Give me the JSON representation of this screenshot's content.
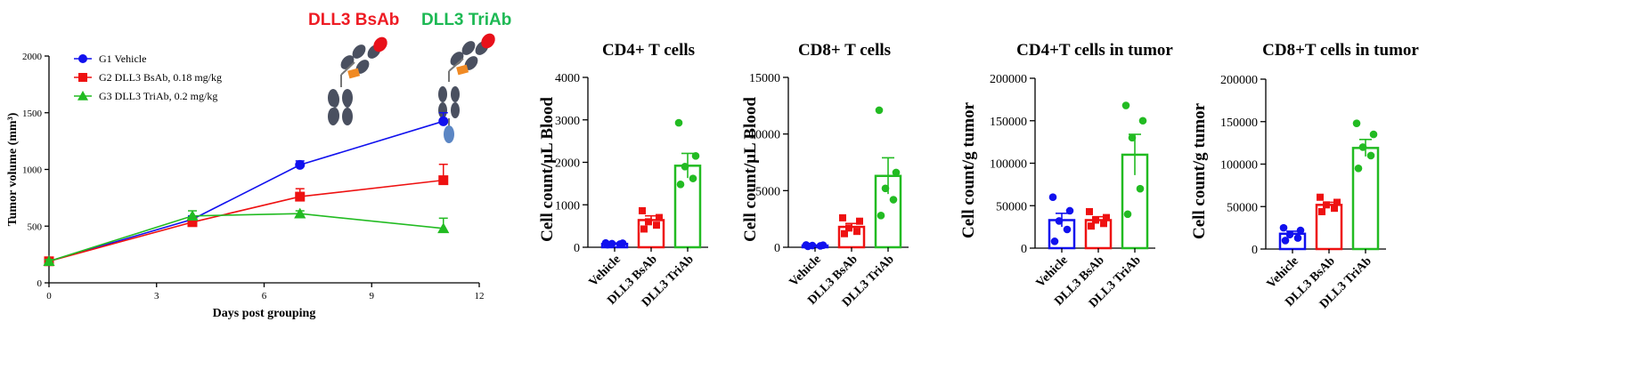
{
  "banner": {
    "bsab": {
      "text": "DLL3 BsAb",
      "color": "#ee1c24"
    },
    "triab": {
      "text": "DLL3 TriAb",
      "color": "#1db954"
    }
  },
  "colors": {
    "vehicle": "#1111ee",
    "bsab": "#ee1111",
    "triab": "#22bb22"
  },
  "chart_data": [
    {
      "type": "line",
      "title": "",
      "xlabel": "Days post grouping",
      "ylabel": "Tumor volume (mm³)",
      "xlim": [
        0,
        12
      ],
      "ylim": [
        0,
        2000
      ],
      "xticks": [
        0,
        3,
        6,
        9,
        12
      ],
      "yticks": [
        0,
        500,
        1000,
        1500,
        2000
      ],
      "legend_position": "top-left",
      "series": [
        {
          "name": "G1 Vehicle",
          "key": "vehicle",
          "marker": "circle",
          "x": [
            0,
            4,
            7,
            11
          ],
          "y": [
            190,
            560,
            1040,
            1425
          ],
          "err": [
            15,
            30,
            35,
            75
          ]
        },
        {
          "name": "G2 DLL3 BsAb, 0.18 mg/kg",
          "key": "bsab",
          "marker": "square",
          "x": [
            0,
            4,
            7,
            11
          ],
          "y": [
            190,
            535,
            760,
            905
          ],
          "err": [
            15,
            30,
            70,
            140
          ]
        },
        {
          "name": "G3 DLL3 TriAb, 0.2 mg/kg",
          "key": "triab",
          "marker": "triangle",
          "x": [
            0,
            4,
            7,
            11
          ],
          "y": [
            190,
            590,
            610,
            480
          ],
          "err": [
            15,
            45,
            25,
            90
          ]
        }
      ]
    },
    {
      "type": "bar",
      "title": "CD4+ T cells",
      "ylabel": "Cell count/μL Blood",
      "ylim": [
        0,
        4000
      ],
      "yticks": [
        0,
        1000,
        2000,
        3000,
        4000
      ],
      "categories": [
        "Vehicle",
        "DLL3 BsAb",
        "DLL3 TriAb"
      ],
      "values": [
        80,
        640,
        1920
      ],
      "sem": [
        20,
        100,
        290
      ],
      "points": [
        [
          60,
          75,
          85,
          95,
          100
        ],
        [
          430,
          520,
          600,
          700,
          860
        ],
        [
          1480,
          1620,
          1900,
          2150,
          2930
        ]
      ]
    },
    {
      "type": "bar",
      "title": "CD8+ T cells",
      "ylabel": "Cell count/μL Blood",
      "ylim": [
        0,
        15000
      ],
      "yticks": [
        0,
        5000,
        10000,
        15000
      ],
      "categories": [
        "Vehicle",
        "DLL3 BsAb",
        "DLL3 TriAb"
      ],
      "values": [
        150,
        1800,
        6300
      ],
      "sem": [
        30,
        300,
        1600
      ],
      "points": [
        [
          80,
          120,
          150,
          180,
          200
        ],
        [
          1200,
          1400,
          1700,
          2300,
          2600
        ],
        [
          2800,
          4200,
          5200,
          6600,
          12100
        ]
      ]
    },
    {
      "type": "bar",
      "title": "CD4+T cells in tumor",
      "ylabel": "Cell count/g tumor",
      "ylim": [
        0,
        200000
      ],
      "yticks": [
        0,
        50000,
        100000,
        150000,
        200000
      ],
      "categories": [
        "Vehicle",
        "DLL3 BsAb",
        "DLL3 TriAb"
      ],
      "values": [
        33000,
        33000,
        110000
      ],
      "sem": [
        8000,
        4000,
        24000
      ],
      "points": [
        [
          8000,
          22000,
          32000,
          44000,
          60000
        ],
        [
          26000,
          29000,
          33000,
          36000,
          43000
        ],
        [
          40000,
          70000,
          130000,
          150000,
          168000
        ]
      ]
    },
    {
      "type": "bar",
      "title": "CD8+T cells in tumor",
      "ylabel": "Cell count/g tumor",
      "ylim": [
        0,
        200000
      ],
      "yticks": [
        0,
        50000,
        100000,
        150000,
        200000
      ],
      "categories": [
        "Vehicle",
        "DLL3 BsAb",
        "DLL3 TriAb"
      ],
      "values": [
        18000,
        52000,
        119000
      ],
      "sem": [
        3000,
        3000,
        10000
      ],
      "points": [
        [
          10000,
          13000,
          17000,
          22000,
          25000
        ],
        [
          44000,
          48000,
          52000,
          55000,
          61000
        ],
        [
          95000,
          110000,
          120000,
          135000,
          148000
        ]
      ]
    }
  ]
}
